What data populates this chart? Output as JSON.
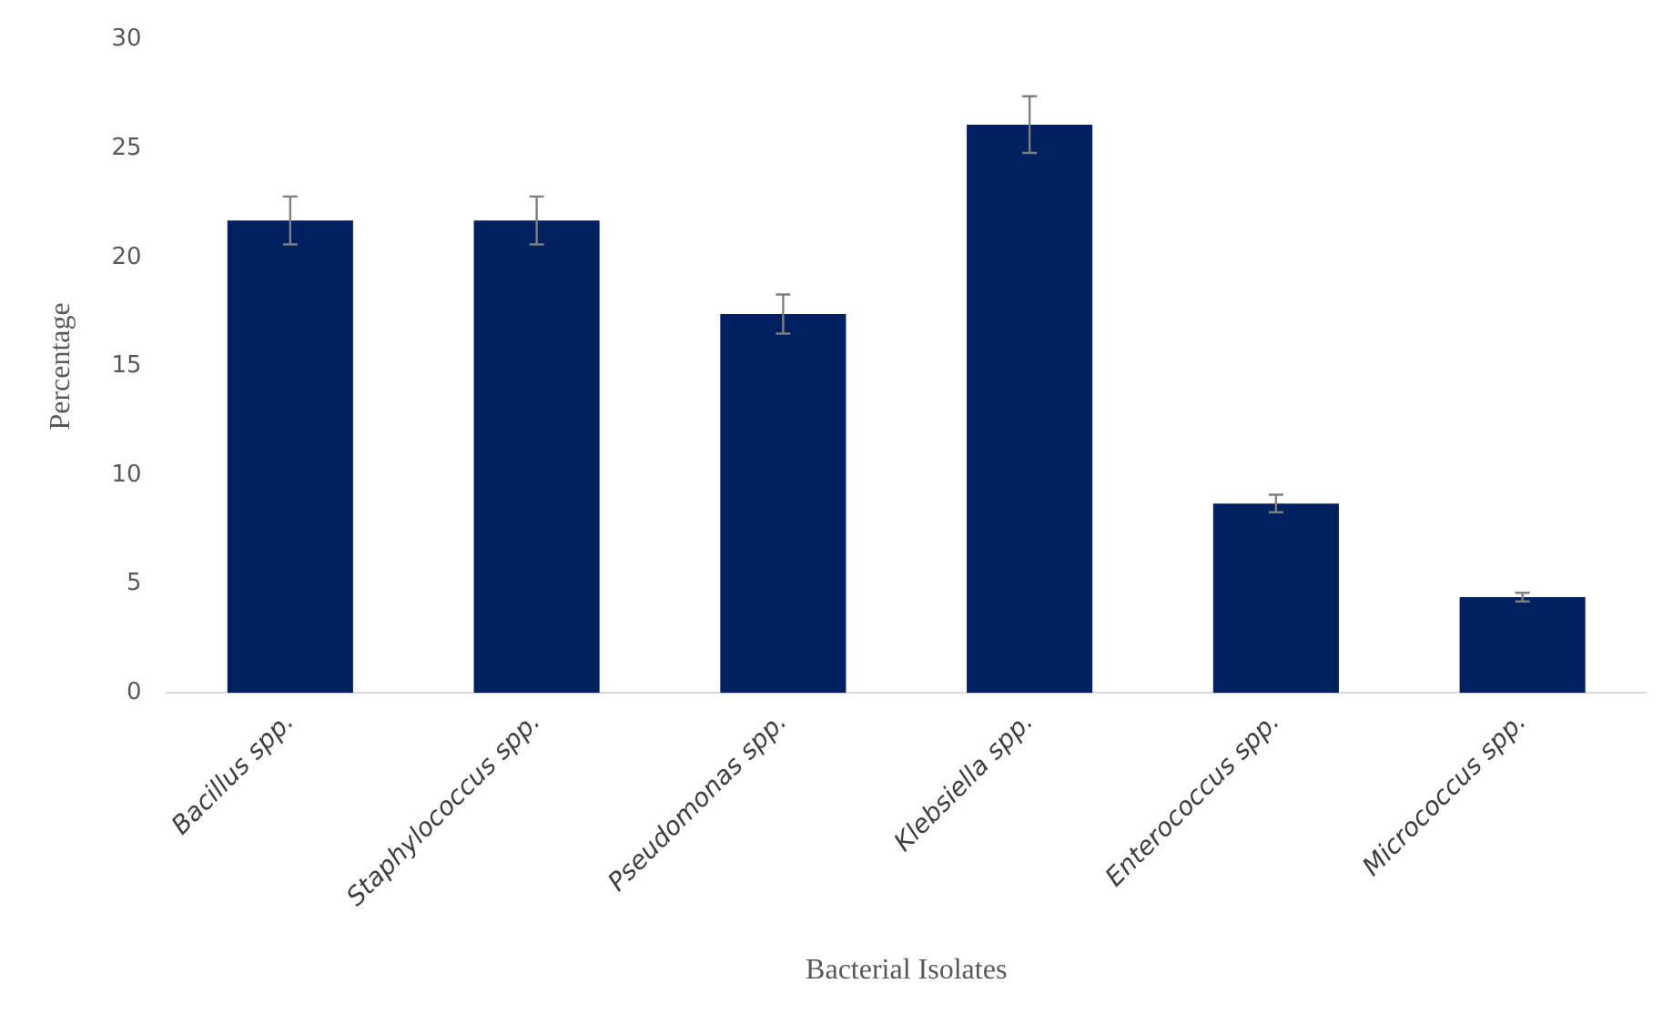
{
  "chart_data": {
    "type": "bar",
    "xlabel": "Bacterial Isolates",
    "ylabel": "Percentage",
    "categories": [
      "Bacillus spp.",
      "Staphylococcus spp.",
      "Pseudomonas spp.",
      "Klebsiella spp.",
      "Enterococcus spp.",
      "Micrococcus spp."
    ],
    "values": [
      21.7,
      21.7,
      17.4,
      26.1,
      8.7,
      4.4
    ],
    "errors": [
      1.1,
      1.1,
      0.9,
      1.3,
      0.4,
      0.2
    ],
    "color": "#002060",
    "ylim": [
      0,
      30
    ],
    "yticks": [
      0,
      5,
      10,
      15,
      20,
      25,
      30
    ],
    "grid": false,
    "legend": false
  }
}
